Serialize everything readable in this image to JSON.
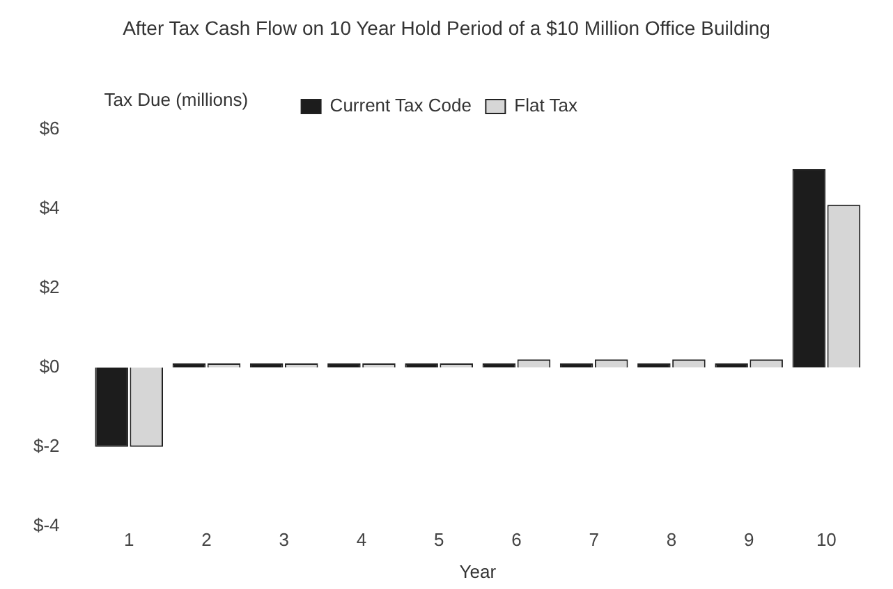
{
  "chart_data": {
    "type": "bar",
    "title": "After Tax Cash Flow on 10 Year Hold Period of a $10 Million Office Building",
    "ylabel": "Tax Due (millions)",
    "xlabel": "Year",
    "categories": [
      "1",
      "2",
      "3",
      "4",
      "5",
      "6",
      "7",
      "8",
      "9",
      "10"
    ],
    "series": [
      {
        "name": "Current Tax Code",
        "color": "#1c1c1c",
        "values": [
          -2.0,
          0.1,
          0.1,
          0.1,
          0.1,
          0.1,
          0.1,
          0.1,
          0.1,
          5.0
        ]
      },
      {
        "name": "Flat Tax",
        "color": "#d6d6d6",
        "values": [
          -2.0,
          0.1,
          0.1,
          0.1,
          0.1,
          0.2,
          0.2,
          0.2,
          0.2,
          4.1
        ]
      }
    ],
    "ylim": [
      -4,
      6
    ],
    "yticks": [
      {
        "value": -4,
        "label": "$-4"
      },
      {
        "value": -2,
        "label": "$-2"
      },
      {
        "value": 0,
        "label": "$0"
      },
      {
        "value": 2,
        "label": "$2"
      },
      {
        "value": 4,
        "label": "$4"
      },
      {
        "value": 6,
        "label": "$6"
      }
    ],
    "grid": false,
    "legend": "top"
  }
}
